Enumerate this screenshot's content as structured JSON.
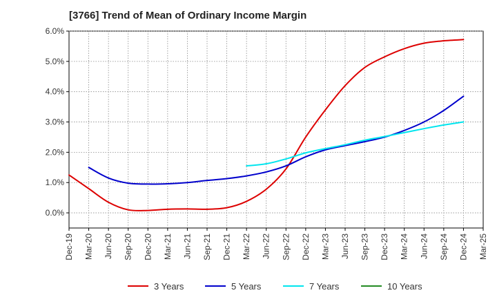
{
  "chart_data": {
    "type": "line",
    "title": "[3766]  Trend of Mean of Ordinary Income Margin",
    "xlabel": "",
    "ylabel": "",
    "ylim": [
      -0.5,
      6.0
    ],
    "yticks": [
      0.0,
      1.0,
      2.0,
      3.0,
      4.0,
      5.0,
      6.0
    ],
    "ytick_labels": [
      "0.0%",
      "1.0%",
      "2.0%",
      "3.0%",
      "4.0%",
      "5.0%",
      "6.0%"
    ],
    "x_tick_labels": [
      "Dec-19",
      "Mar-20",
      "Jun-20",
      "Sep-20",
      "Dec-20",
      "Mar-21",
      "Jun-21",
      "Sep-21",
      "Dec-21",
      "Mar-22",
      "Jun-22",
      "Sep-22",
      "Dec-22",
      "Mar-23",
      "Jun-23",
      "Sep-23",
      "Dec-23",
      "Mar-24",
      "Jun-24",
      "Sep-24",
      "Dec-24",
      "Mar-25"
    ],
    "grid": true,
    "legend_position": "bottom",
    "series": [
      {
        "name": "3 Years",
        "color": "#dd0000",
        "x": [
          "Dec-19",
          "Mar-20",
          "Jun-20",
          "Sep-20",
          "Dec-20",
          "Mar-21",
          "Jun-21",
          "Sep-21",
          "Dec-21",
          "Mar-22",
          "Jun-22",
          "Sep-22",
          "Dec-22",
          "Mar-23",
          "Jun-23",
          "Sep-23",
          "Dec-23",
          "Mar-24",
          "Jun-24",
          "Sep-24",
          "Dec-24"
        ],
        "values": [
          1.25,
          0.8,
          0.35,
          0.1,
          0.08,
          0.12,
          0.13,
          0.12,
          0.17,
          0.38,
          0.78,
          1.45,
          2.5,
          3.4,
          4.2,
          4.8,
          5.15,
          5.42,
          5.6,
          5.68,
          5.72
        ]
      },
      {
        "name": "5 Years",
        "color": "#0000cc",
        "x": [
          "Mar-20",
          "Jun-20",
          "Sep-20",
          "Dec-20",
          "Mar-21",
          "Jun-21",
          "Sep-21",
          "Dec-21",
          "Mar-22",
          "Jun-22",
          "Sep-22",
          "Dec-22",
          "Mar-23",
          "Jun-23",
          "Sep-23",
          "Dec-23",
          "Mar-24",
          "Jun-24",
          "Sep-24",
          "Dec-24"
        ],
        "values": [
          1.5,
          1.15,
          0.98,
          0.95,
          0.96,
          1.0,
          1.07,
          1.13,
          1.22,
          1.35,
          1.55,
          1.85,
          2.08,
          2.22,
          2.35,
          2.5,
          2.72,
          3.0,
          3.38,
          3.85
        ]
      },
      {
        "name": "7 Years",
        "color": "#00e5ee",
        "x": [
          "Mar-22",
          "Jun-22",
          "Sep-22",
          "Dec-22",
          "Mar-23",
          "Jun-23",
          "Sep-23",
          "Dec-23",
          "Mar-24",
          "Jun-24",
          "Sep-24",
          "Dec-24"
        ],
        "values": [
          1.55,
          1.62,
          1.78,
          1.98,
          2.12,
          2.25,
          2.4,
          2.52,
          2.65,
          2.78,
          2.9,
          3.0
        ]
      },
      {
        "name": "10 Years",
        "color": "#228b22",
        "x": [],
        "values": []
      }
    ]
  }
}
